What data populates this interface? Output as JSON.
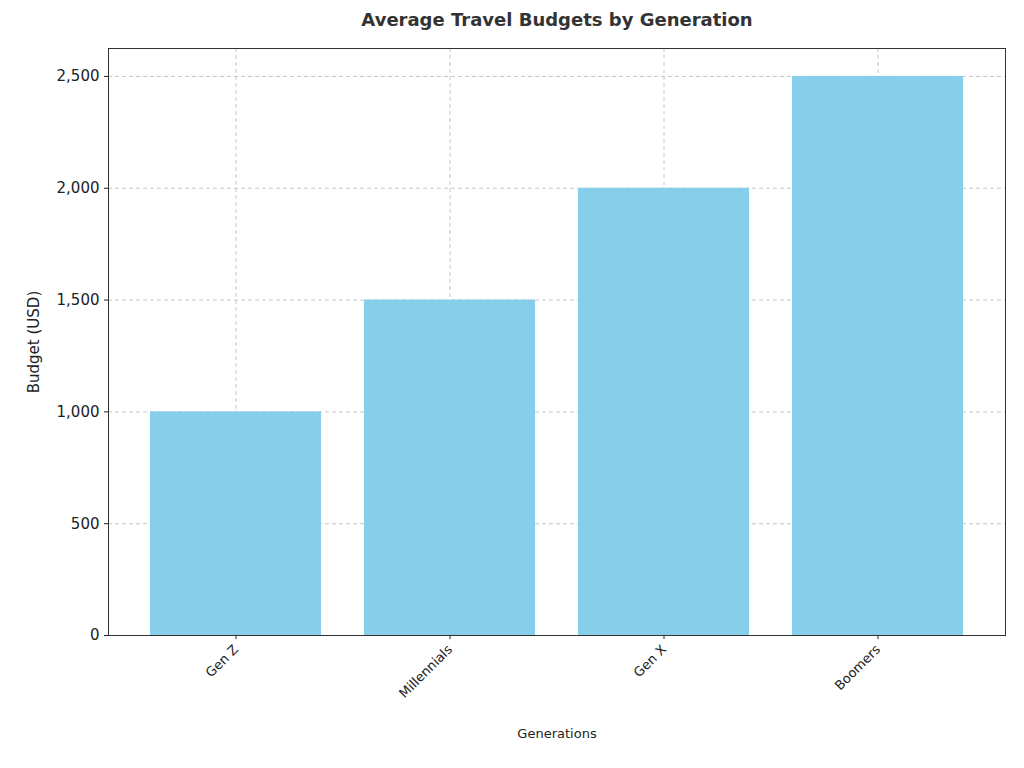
{
  "chart_data": {
    "type": "bar",
    "title": "Average Travel Budgets by Generation",
    "x_label": "Generations",
    "y_label": "Budget (USD)",
    "categories": [
      "Gen Z",
      "Millennials",
      "Gen X",
      "Boomers"
    ],
    "values": [
      1000,
      1500,
      2000,
      2500
    ],
    "color": "#87ceeb",
    "ylim": [
      0,
      2625
    ],
    "yticks": [
      0,
      500,
      1000,
      1500,
      2000,
      2500
    ],
    "grid": true
  }
}
